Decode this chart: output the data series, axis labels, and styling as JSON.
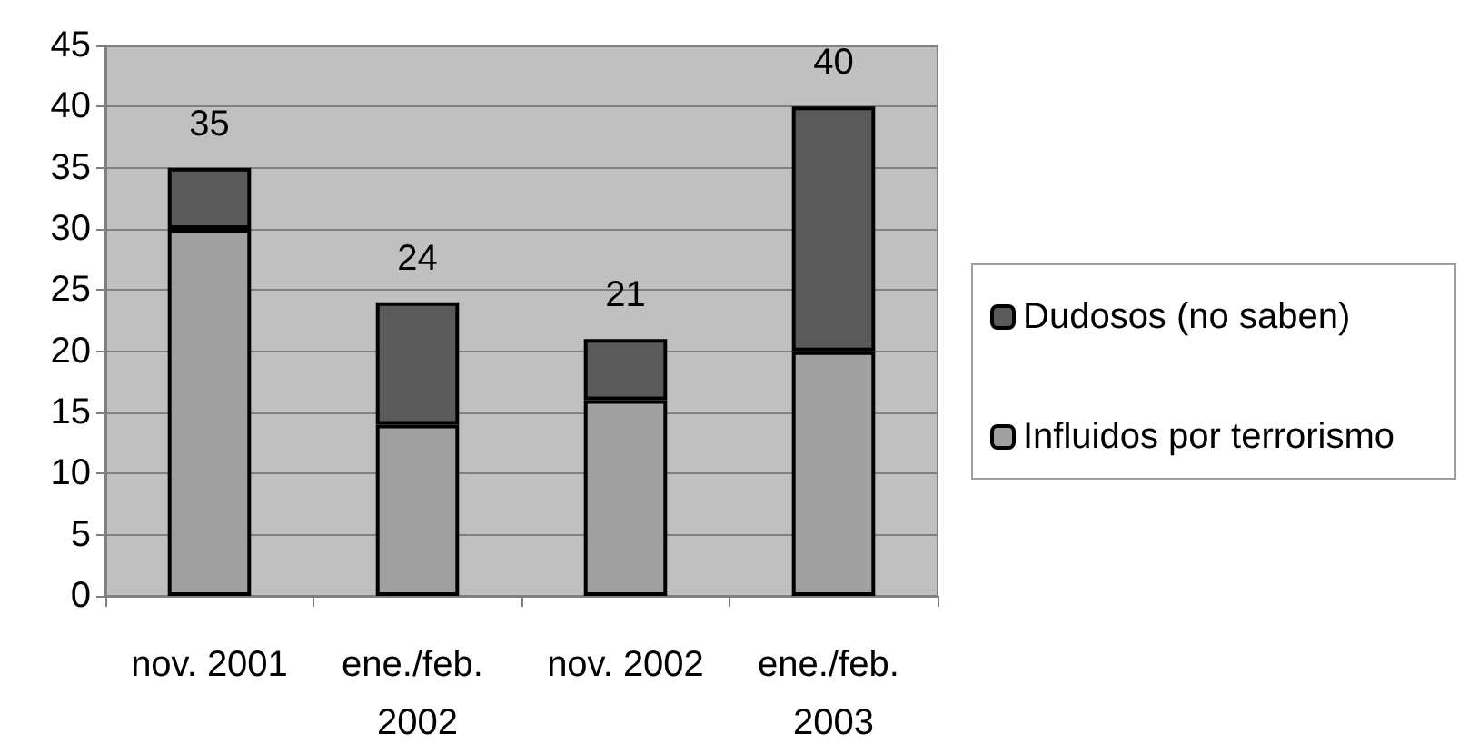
{
  "chart_data": {
    "type": "bar",
    "stacked": true,
    "categories": [
      "nov. 2001",
      "ene./feb. 2002",
      "nov. 2002",
      "ene./feb. 2003"
    ],
    "series": [
      {
        "name": "Influidos por terrorismo",
        "color": "#a0a0a0",
        "values": [
          30,
          14,
          16,
          20
        ]
      },
      {
        "name": "Dudosos (no saben)",
        "color": "#5a5a5a",
        "values": [
          5,
          10,
          5,
          20
        ]
      }
    ],
    "totals": [
      "35",
      "24",
      "21",
      "40"
    ],
    "ylim": [
      0,
      45
    ],
    "yticks": [
      0,
      5,
      10,
      15,
      20,
      25,
      30,
      35,
      40,
      45
    ],
    "grid": "y",
    "legend": "right"
  }
}
